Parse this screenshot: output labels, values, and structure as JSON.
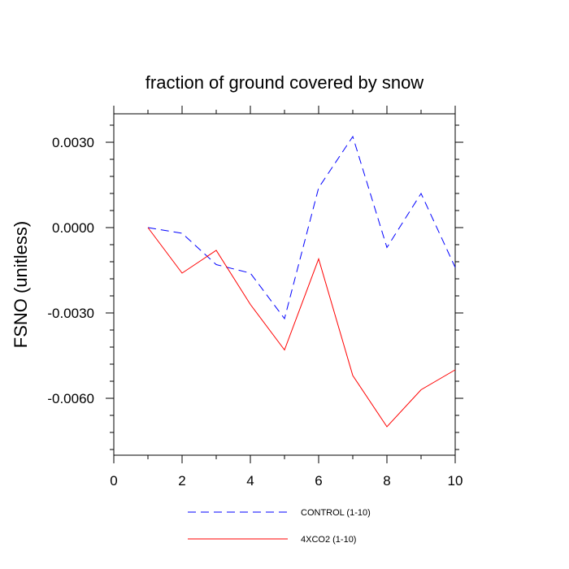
{
  "chart_data": {
    "type": "line",
    "title": "fraction of ground covered by snow",
    "xlabel": "",
    "ylabel": "FSNO  (unitless)",
    "xlim": [
      0,
      10
    ],
    "ylim": [
      -0.008,
      0.004
    ],
    "xticks": [
      0,
      2,
      4,
      6,
      8,
      10
    ],
    "xtick_labels": [
      "0",
      "2",
      "4",
      "6",
      "8",
      "10"
    ],
    "yticks": [
      0.003,
      0.0,
      -0.003,
      -0.006
    ],
    "ytick_labels": [
      "0.0030",
      "0.0000",
      "-0.0030",
      "-0.0060"
    ],
    "grid": false,
    "legend_position": "bottom",
    "x": [
      1,
      2,
      3,
      4,
      5,
      6,
      7,
      8,
      9,
      10
    ],
    "series": [
      {
        "name": "CONTROL (1-10)",
        "color": "#0000ff",
        "style": "dashed",
        "values": [
          0.0,
          -0.0002,
          -0.0013,
          -0.0016,
          -0.0032,
          0.0014,
          0.0032,
          -0.0007,
          0.0012,
          -0.0014
        ]
      },
      {
        "name": "4XCO2 (1-10)",
        "color": "#ff0000",
        "style": "solid",
        "values": [
          0.0,
          -0.0016,
          -0.0008,
          -0.0027,
          -0.0043,
          -0.0011,
          -0.0052,
          -0.007,
          -0.0057,
          -0.005
        ]
      }
    ]
  }
}
